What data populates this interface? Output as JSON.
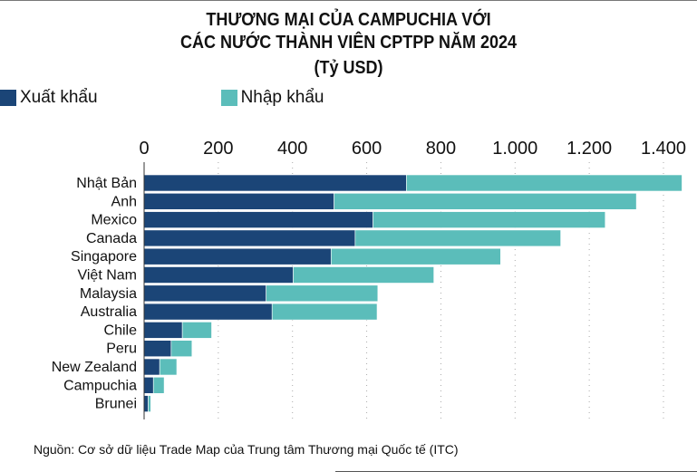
{
  "chart_data": {
    "type": "bar",
    "orientation": "horizontal",
    "stacked": true,
    "title_lines": [
      "THƯƠNG MẠI CỦA CAMPUCHIA VỚI",
      "CÁC NƯỚC THÀNH VIÊN CPTPP NĂM 2024",
      "(Tỷ USD)"
    ],
    "categories": [
      "Nhật Bản",
      "Anh",
      "Mexico",
      "Canada",
      "Singapore",
      "Việt Nam",
      "Malaysia",
      "Australia",
      "Chile",
      "Peru",
      "New Zealand",
      "Campuchia",
      "Brunei"
    ],
    "series": [
      {
        "name": "Xuất khẩu",
        "color": "#1b4577",
        "values": [
          707,
          512,
          617,
          569,
          504,
          402,
          329,
          345,
          103,
          73,
          42,
          25,
          11
        ]
      },
      {
        "name": "Nhập khẩu",
        "color": "#5bbdba",
        "values": [
          743,
          815,
          626,
          554,
          457,
          379,
          301,
          283,
          79,
          56,
          46,
          29,
          7
        ]
      }
    ],
    "xlim": [
      0,
      1400
    ],
    "xticks": [
      0,
      200,
      400,
      600,
      800,
      1000,
      1200,
      1400
    ],
    "xtick_labels": [
      "0",
      "200",
      "400",
      "600",
      "800",
      "1.000",
      "1.200",
      "1.400"
    ],
    "xaxis_position": "top",
    "grid": "vertical dotted",
    "legend_position": "top-left",
    "source": "Nguồn: Cơ sở dữ liệu Trade Map của Trung tâm Thương mại Quốc tế (ITC)"
  }
}
